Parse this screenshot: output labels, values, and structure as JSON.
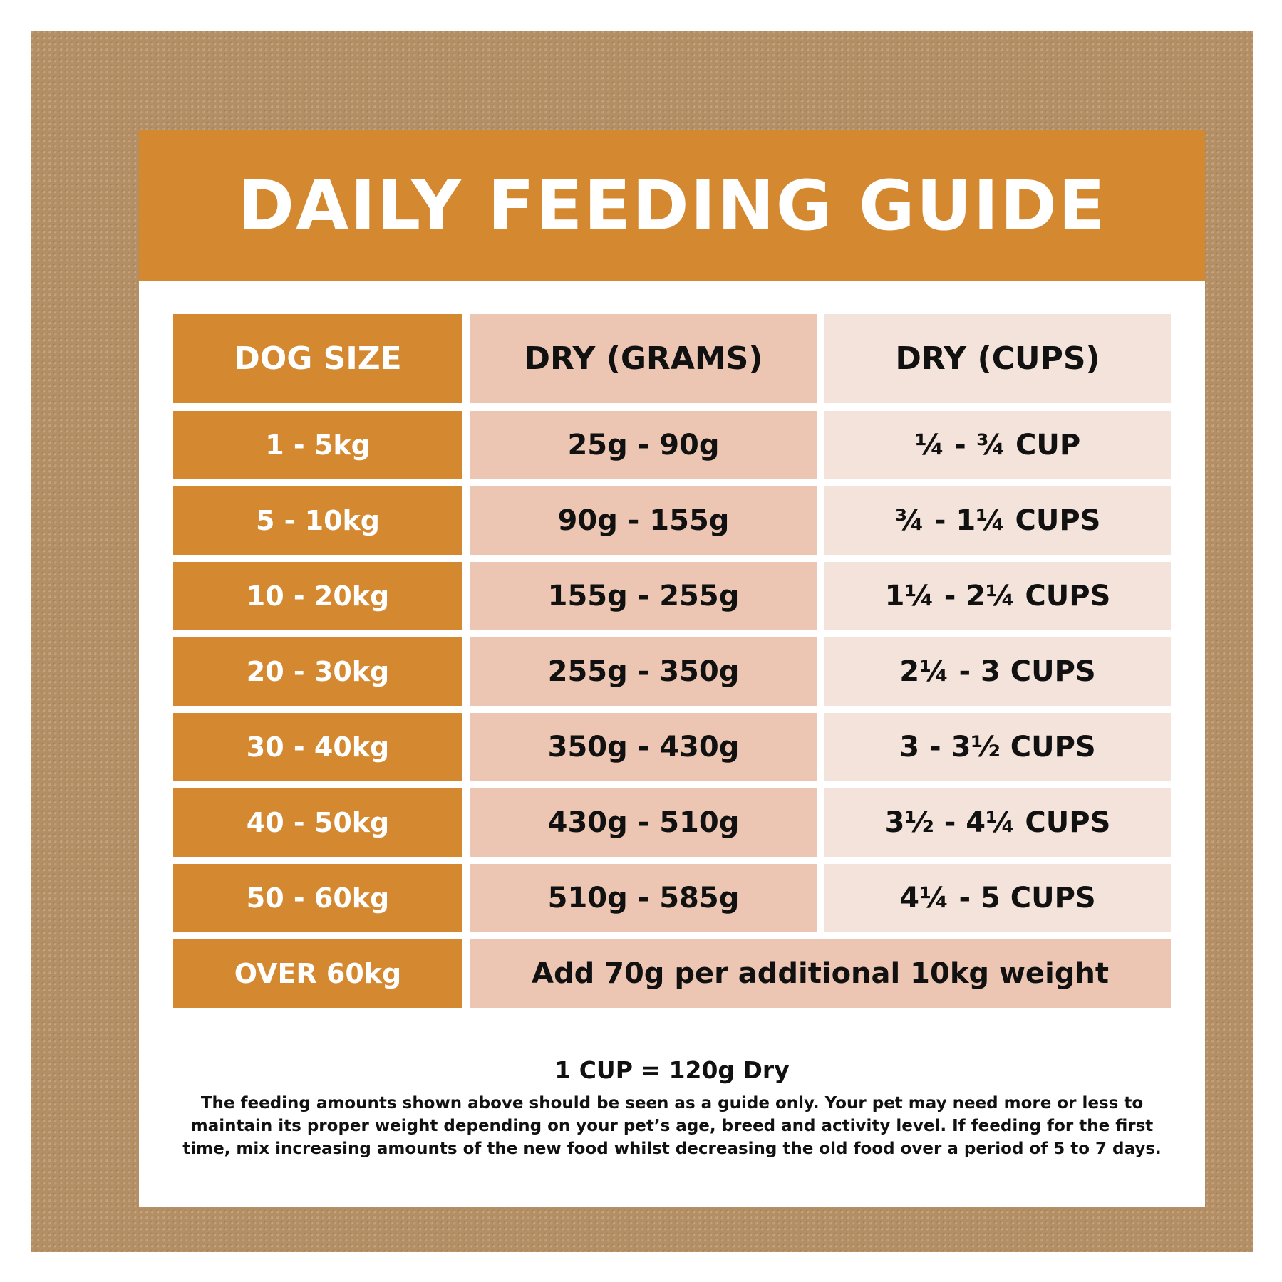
{
  "title": "DAILY FEEDING GUIDE",
  "colors": {
    "frame": "#b48f66",
    "accent": "#d48930",
    "grams_cell": "#ecc6b2",
    "cups_cell": "#f4e3da"
  },
  "table": {
    "headers": [
      "DOG SIZE",
      "DRY (GRAMS)",
      "DRY (CUPS)"
    ],
    "rows": [
      [
        "1 - 5kg",
        "25g - 90g",
        "¼ - ¾ CUP"
      ],
      [
        "5 - 10kg",
        "90g - 155g",
        "¾ - 1¼ CUPS"
      ],
      [
        "10 - 20kg",
        "155g - 255g",
        "1¼ - 2¼ CUPS"
      ],
      [
        "20 - 30kg",
        "255g - 350g",
        "2¼ - 3 CUPS"
      ],
      [
        "30 - 40kg",
        "350g - 430g",
        "3 - 3½ CUPS"
      ],
      [
        "40 - 50kg",
        "430g - 510g",
        "3½ - 4¼ CUPS"
      ],
      [
        "50 - 60kg",
        "510g - 585g",
        "4¼ - 5 CUPS"
      ],
      [
        "OVER 60kg",
        "Add 70g per additional 10kg weight"
      ]
    ]
  },
  "footnote": {
    "conversion": "1 CUP = 120g Dry",
    "text": "The feeding amounts shown above should be seen as a guide only. Your pet may need more or less to maintain its proper weight depending on your pet’s age, breed and activity level. If feeding for the first time, mix increasing amounts of the new food whilst decreasing the old food over a period of 5 to 7 days."
  }
}
